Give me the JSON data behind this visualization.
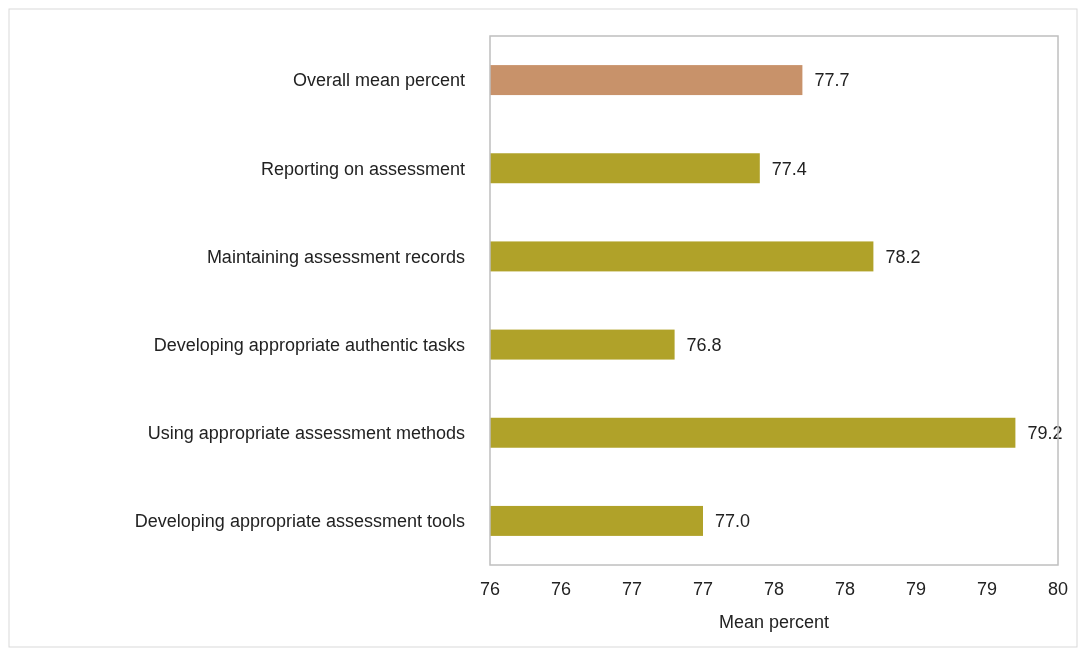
{
  "chart_data": {
    "type": "bar",
    "orientation": "horizontal",
    "xlabel": "Mean percent",
    "categories": [
      "Overall mean percent",
      "Reporting on assessment",
      "Maintaining assessment records",
      "Developing appropriate authentic tasks",
      "Using appropriate assessment methods",
      "Developing appropriate assessment tools"
    ],
    "values": [
      77.7,
      77.4,
      78.2,
      76.8,
      79.2,
      77.0
    ],
    "colors": [
      "#c8926a",
      "#b0a229",
      "#b0a229",
      "#b0a229",
      "#b0a229",
      "#b0a229"
    ],
    "value_labels": [
      "77.7",
      "77.4",
      "78.2",
      "76.8",
      "79.2",
      "77.0"
    ],
    "xlim": [
      75.5,
      79.5
    ],
    "xticks": [
      {
        "value": 75.5,
        "label": "76"
      },
      {
        "value": 76,
        "label": "76"
      },
      {
        "value": 76.5,
        "label": "77"
      },
      {
        "value": 77,
        "label": "77"
      },
      {
        "value": 77.5,
        "label": "78"
      },
      {
        "value": 78,
        "label": "78"
      },
      {
        "value": 78.5,
        "label": "79"
      },
      {
        "value": 79,
        "label": "79"
      },
      {
        "value": 79.5,
        "label": "80"
      }
    ],
    "grid": false
  }
}
